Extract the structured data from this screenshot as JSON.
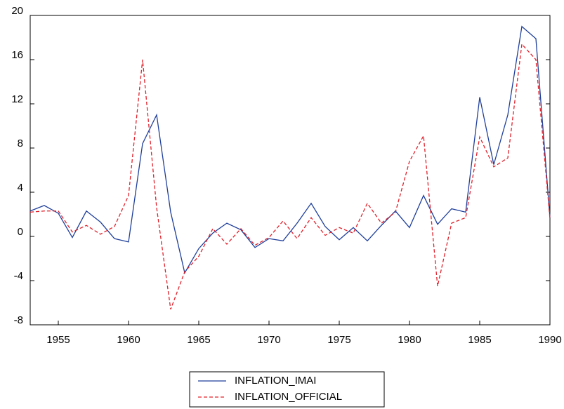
{
  "chart_data": {
    "type": "line",
    "x": [
      1953,
      1954,
      1955,
      1956,
      1957,
      1958,
      1959,
      1960,
      1961,
      1962,
      1963,
      1964,
      1965,
      1966,
      1967,
      1968,
      1969,
      1970,
      1971,
      1972,
      1973,
      1974,
      1975,
      1976,
      1977,
      1978,
      1979,
      1980,
      1981,
      1982,
      1983,
      1984,
      1985,
      1986,
      1987,
      1988,
      1989,
      1990
    ],
    "series": [
      {
        "name": "INFLATION_IMAI",
        "color": "#1f3f9a",
        "dash": false,
        "values": [
          2.3,
          2.8,
          2.1,
          -0.1,
          2.3,
          1.3,
          -0.2,
          -0.5,
          8.4,
          11.0,
          2.2,
          -3.3,
          -1.1,
          0.3,
          1.2,
          0.6,
          -1.0,
          -0.2,
          -0.4,
          1.2,
          3.0,
          0.9,
          -0.3,
          0.8,
          -0.4,
          1.0,
          2.3,
          0.8,
          3.7,
          1.1,
          2.5,
          2.2,
          12.6,
          6.5,
          11.0,
          19.0,
          17.9,
          1.7
        ]
      },
      {
        "name": "INFLATION_OFFICIAL",
        "color": "#e0202a",
        "dash": true,
        "values": [
          2.2,
          2.3,
          2.3,
          0.4,
          1.0,
          0.2,
          0.9,
          3.7,
          16.0,
          2.6,
          -6.6,
          -3.2,
          -1.8,
          0.7,
          -0.7,
          0.7,
          -0.8,
          -0.1,
          1.4,
          -0.2,
          1.7,
          0.1,
          0.8,
          0.3,
          3.0,
          1.2,
          2.2,
          6.8,
          9.1,
          -4.5,
          1.2,
          1.7,
          9.0,
          6.3,
          7.1,
          17.4,
          16.0,
          1.6
        ]
      }
    ],
    "xlim": [
      1953,
      1990
    ],
    "xticks": [
      1955,
      1960,
      1965,
      1970,
      1975,
      1980,
      1985,
      1990
    ],
    "ylim": [
      -8,
      20
    ],
    "yticks": [
      -8,
      -4,
      0,
      4,
      8,
      12,
      16,
      20
    ],
    "grid": false,
    "legend": "bottom"
  }
}
